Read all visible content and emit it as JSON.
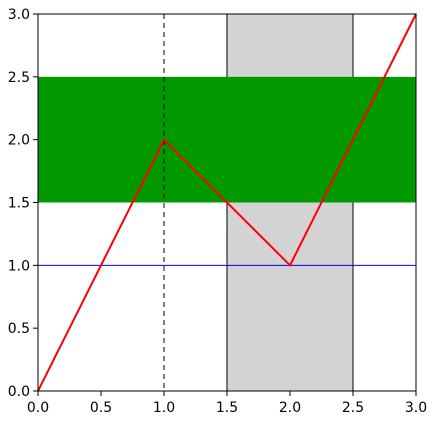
{
  "chart_data": {
    "type": "line",
    "title": "",
    "xlabel": "",
    "ylabel": "",
    "xlim": [
      0,
      3
    ],
    "ylim": [
      0,
      3
    ],
    "grid": false,
    "xticks": [
      "0.0",
      "0.5",
      "1.0",
      "1.5",
      "2.0",
      "2.5",
      "3.0"
    ],
    "yticks": [
      "0.0",
      "0.5",
      "1.0",
      "1.5",
      "2.0",
      "2.5",
      "3.0"
    ],
    "series": [
      {
        "x": [
          0,
          1,
          2,
          3
        ],
        "y": [
          0,
          2,
          1,
          3
        ],
        "color": "#ff0000"
      }
    ],
    "hlines": [
      {
        "y": 1.0,
        "color": "#0000ff",
        "style": "solid"
      }
    ],
    "vlines": [
      {
        "x": 1.0,
        "color": "#000000",
        "style": "dashed"
      }
    ],
    "hspans": [
      {
        "y0": 1.5,
        "y1": 2.5,
        "color": "#009900"
      }
    ],
    "vspans": [
      {
        "x0": 1.5,
        "x1": 2.5,
        "color": "#d3d3d3"
      }
    ]
  }
}
